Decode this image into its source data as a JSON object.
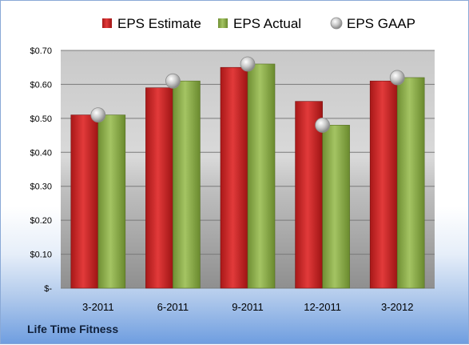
{
  "chart_data": {
    "type": "bar",
    "categories": [
      "3-2011",
      "6-2011",
      "9-2011",
      "12-2011",
      "3-2012"
    ],
    "series": [
      {
        "name": "EPS Estimate",
        "kind": "bar",
        "values": [
          0.51,
          0.59,
          0.65,
          0.55,
          0.61
        ],
        "color": "#d42a2a"
      },
      {
        "name": "EPS Actual",
        "kind": "bar",
        "values": [
          0.51,
          0.61,
          0.66,
          0.48,
          0.62
        ],
        "color": "#8cb04a"
      },
      {
        "name": "EPS GAAP",
        "kind": "marker",
        "values": [
          0.51,
          0.61,
          0.66,
          0.48,
          0.62
        ],
        "color": "#b8b8b8"
      }
    ],
    "ylim": [
      0,
      0.7
    ],
    "yticks": [
      0,
      0.1,
      0.2,
      0.3,
      0.4,
      0.5,
      0.6,
      0.7
    ],
    "ytick_labels": [
      "$-",
      "$0.10",
      "$0.20",
      "$0.30",
      "$0.40",
      "$0.50",
      "$0.60",
      "$0.70"
    ],
    "grid": true,
    "legend_position": "top"
  },
  "company_name": "Life Time Fitness"
}
